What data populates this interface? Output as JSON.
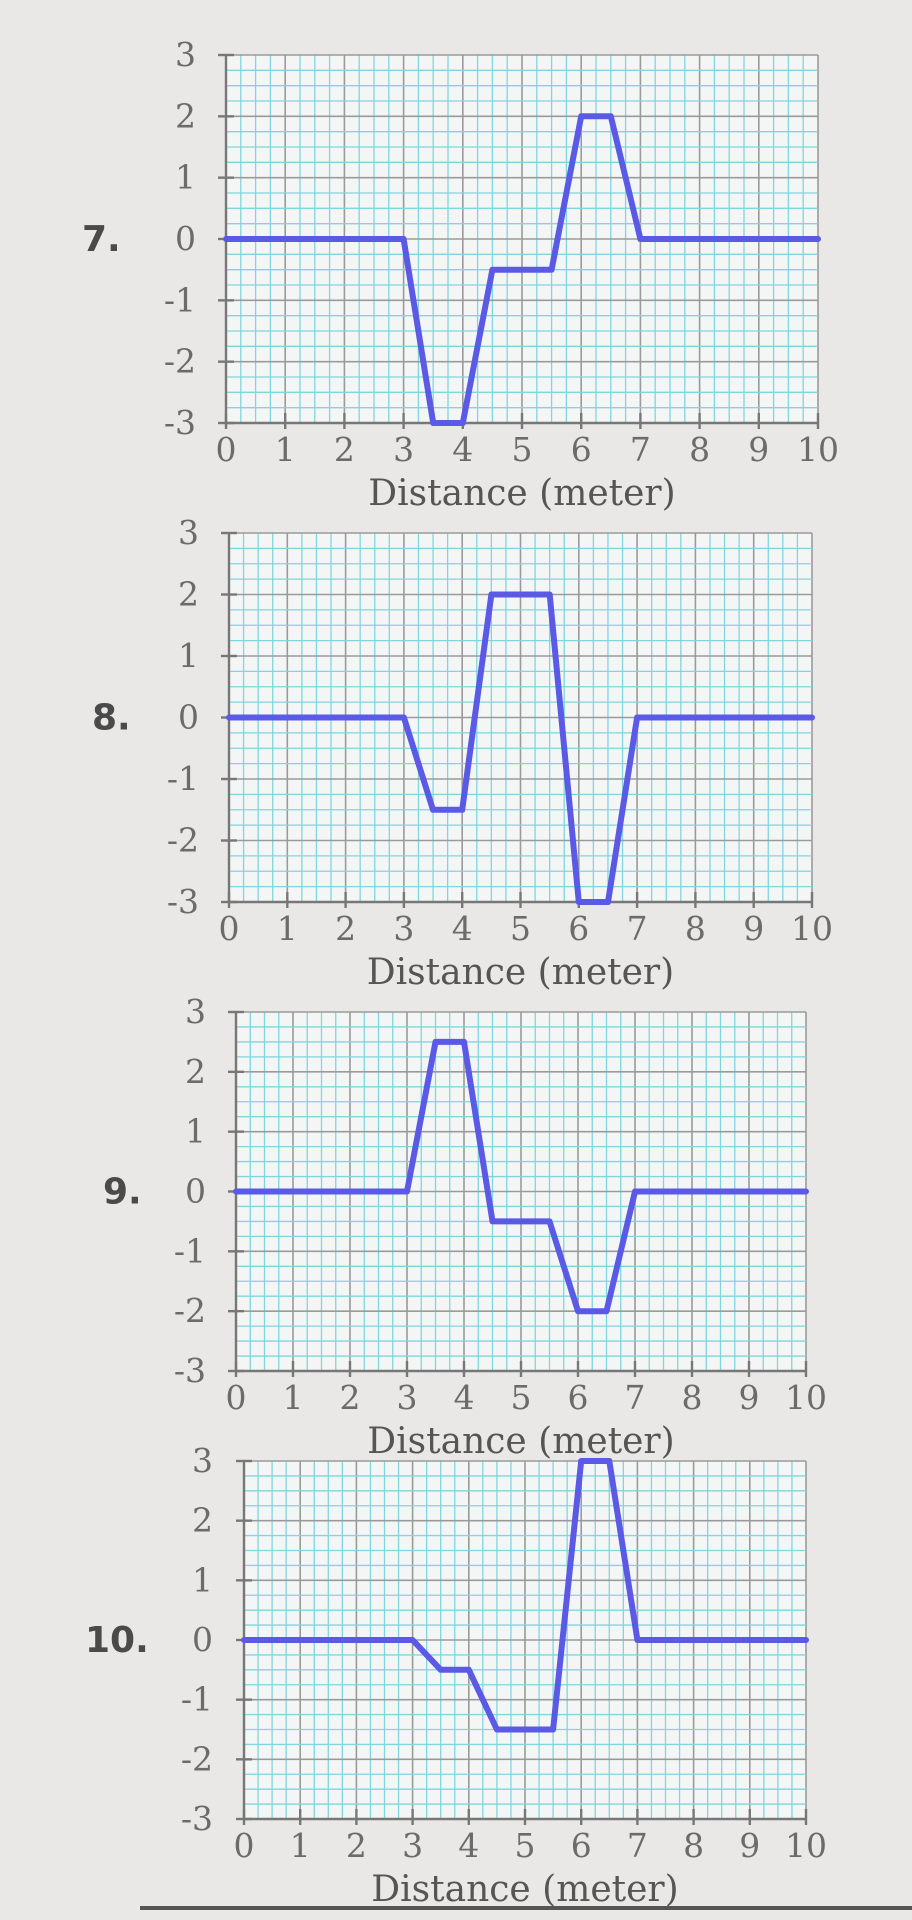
{
  "colors": {
    "background": "#e9e8e6",
    "line": "#5a5ae6",
    "grid_minor": "#7fd6de",
    "grid_major": "#9a9a9a",
    "text": "#6b6b6b"
  },
  "chart_data": [
    {
      "type": "line",
      "problem_number": "7.",
      "xlabel": "Distance (meter)",
      "ylabel": "",
      "xlim": [
        0,
        10
      ],
      "ylim": [
        -3,
        3
      ],
      "x_ticks": [
        "0",
        "1",
        "2",
        "3",
        "4",
        "5",
        "6",
        "7",
        "8",
        "9",
        "10"
      ],
      "y_ticks": [
        "3",
        "2",
        "1",
        "0",
        "-1",
        "-2",
        "-3"
      ],
      "grid": true,
      "series": [
        {
          "points": [
            [
              0,
              0
            ],
            [
              3,
              0
            ],
            [
              3.5,
              -3
            ],
            [
              4,
              -3
            ],
            [
              4.5,
              -0.5
            ],
            [
              5.5,
              -0.5
            ],
            [
              6,
              2
            ],
            [
              6.5,
              2
            ],
            [
              7,
              0
            ],
            [
              10,
              0
            ]
          ]
        }
      ]
    },
    {
      "type": "line",
      "problem_number": "8.",
      "xlabel": "Distance (meter)",
      "ylabel": "",
      "xlim": [
        0,
        10
      ],
      "ylim": [
        -3,
        3
      ],
      "x_ticks": [
        "0",
        "1",
        "2",
        "3",
        "4",
        "5",
        "6",
        "7",
        "8",
        "9",
        "10"
      ],
      "y_ticks": [
        "3",
        "2",
        "1",
        "0",
        "-1",
        "-2",
        "-3"
      ],
      "grid": true,
      "series": [
        {
          "points": [
            [
              0,
              0
            ],
            [
              3,
              0
            ],
            [
              3.5,
              -1.5
            ],
            [
              4,
              -1.5
            ],
            [
              4.5,
              2
            ],
            [
              5.5,
              2
            ],
            [
              6,
              -3
            ],
            [
              6.5,
              -3
            ],
            [
              7,
              0
            ],
            [
              10,
              0
            ]
          ]
        }
      ]
    },
    {
      "type": "line",
      "problem_number": "9.",
      "xlabel": "Distance (meter)",
      "ylabel": "",
      "xlim": [
        0,
        10
      ],
      "ylim": [
        -3,
        3
      ],
      "x_ticks": [
        "0",
        "1",
        "2",
        "3",
        "4",
        "5",
        "6",
        "7",
        "8",
        "9",
        "10"
      ],
      "y_ticks": [
        "3",
        "2",
        "1",
        "0",
        "-1",
        "-2",
        "-3"
      ],
      "grid": true,
      "series": [
        {
          "points": [
            [
              0,
              0
            ],
            [
              3,
              0
            ],
            [
              3.5,
              2.5
            ],
            [
              4,
              2.5
            ],
            [
              4.5,
              -0.5
            ],
            [
              5.5,
              -0.5
            ],
            [
              6,
              -2
            ],
            [
              6.5,
              -2
            ],
            [
              7,
              0
            ],
            [
              10,
              0
            ]
          ]
        }
      ]
    },
    {
      "type": "line",
      "problem_number": "10.",
      "xlabel": "Distance (meter)",
      "ylabel": "",
      "xlim": [
        0,
        10
      ],
      "ylim": [
        -3,
        3
      ],
      "x_ticks": [
        "0",
        "1",
        "2",
        "3",
        "4",
        "5",
        "6",
        "7",
        "8",
        "9",
        "10"
      ],
      "y_ticks": [
        "3",
        "2",
        "1",
        "0",
        "-1",
        "-2",
        "-3"
      ],
      "grid": true,
      "series": [
        {
          "points": [
            [
              0,
              0
            ],
            [
              3,
              0
            ],
            [
              3.5,
              -0.5
            ],
            [
              4,
              -0.5
            ],
            [
              4.5,
              -1.5
            ],
            [
              5.5,
              -1.5
            ],
            [
              6,
              3
            ],
            [
              6.5,
              3
            ],
            [
              7,
              0
            ],
            [
              10,
              0
            ]
          ]
        }
      ]
    }
  ]
}
